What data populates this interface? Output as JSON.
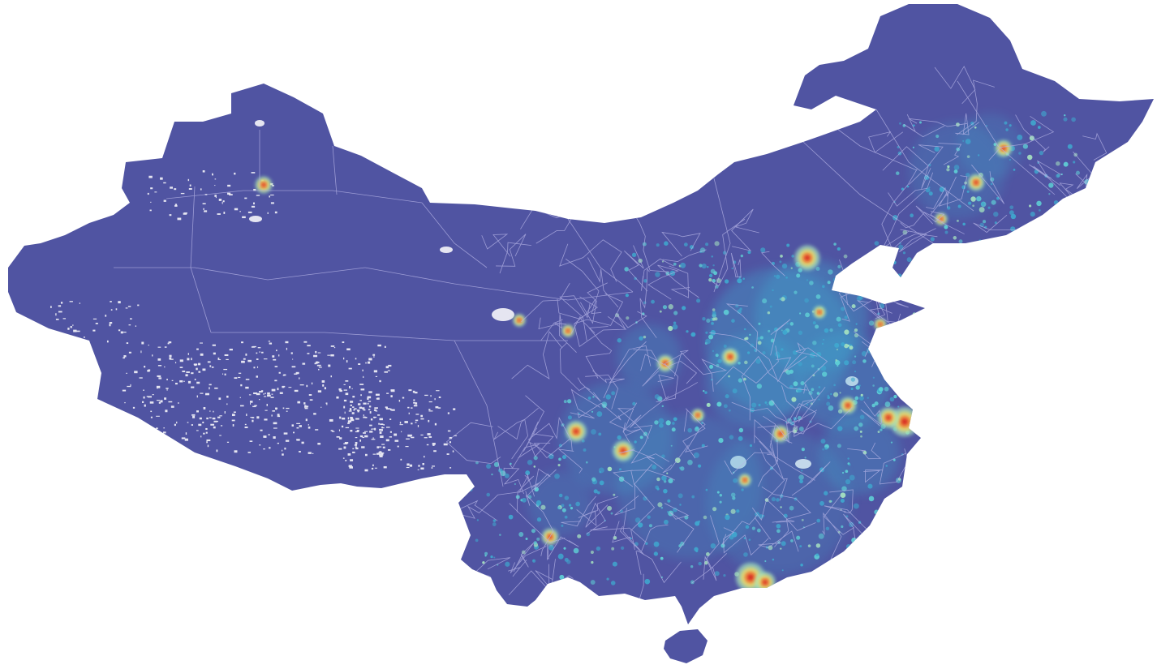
{
  "map": {
    "base_color": "#5054a2",
    "boundary_color": "#b6b4e6",
    "gap_color": "#ffffff",
    "density_colors": [
      "#3f7fc4",
      "#3fa8cf",
      "#5fd0d6",
      "#a6e3c0",
      "#e8e070",
      "#f08a3c",
      "#d42020"
    ],
    "regions": [
      "mainland",
      "hainan-island"
    ]
  }
}
